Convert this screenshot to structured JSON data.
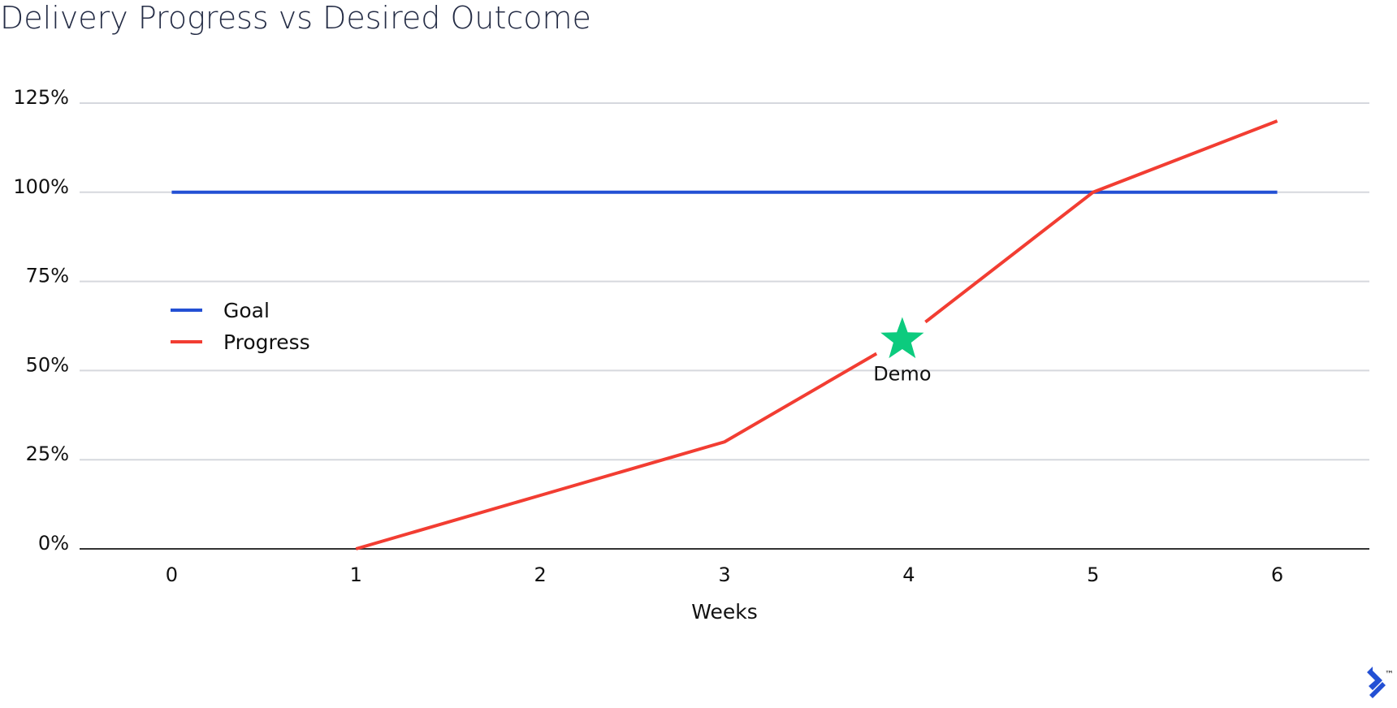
{
  "chart_data": {
    "type": "line",
    "title": "Delivery Progress vs Desired Outcome",
    "xlabel": "Weeks",
    "ylabel": "",
    "x": [
      0,
      1,
      2,
      3,
      4,
      5,
      6
    ],
    "x_ticks": [
      "0",
      "1",
      "2",
      "3",
      "4",
      "5",
      "6"
    ],
    "y_ticks": [
      "0%",
      "25%",
      "50%",
      "75%",
      "100%",
      "125%"
    ],
    "ylim": [
      0,
      125
    ],
    "xlim": [
      -0.5,
      6.5
    ],
    "grid": true,
    "legend_position": "left",
    "series": [
      {
        "name": "Goal",
        "color": "#2350d4",
        "x": [
          0,
          6
        ],
        "y": [
          100,
          100
        ]
      },
      {
        "name": "Progress",
        "color": "#f23d32",
        "x": [
          1,
          2,
          3,
          4,
          5,
          6
        ],
        "y": [
          0,
          15,
          30,
          60,
          100,
          120
        ]
      }
    ],
    "annotations": [
      {
        "label": "Demo",
        "x": 4,
        "y": 60,
        "marker": "star",
        "color": "#0ccb7e"
      }
    ]
  },
  "brand": {
    "trademark": "™",
    "logo_color": "#2350d4"
  }
}
